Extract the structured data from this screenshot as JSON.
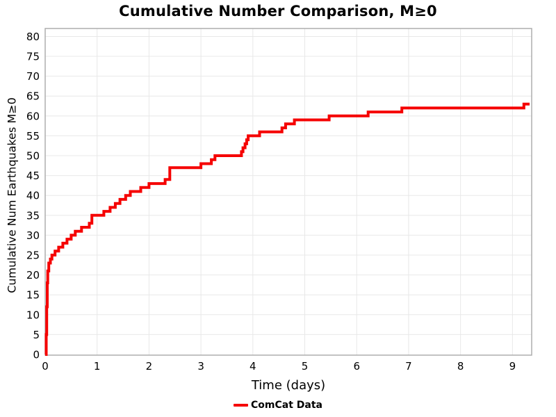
{
  "title": "Cumulative Number Comparison, M≥0",
  "axes": {
    "xlabel": "Time (days)",
    "ylabel": "Cumulative Num Earthquakes M≥0"
  },
  "legend": {
    "position": "bottom-center",
    "items": [
      {
        "label": "ComCat Data",
        "color": "#f50000"
      }
    ]
  },
  "colors": {
    "line": "#f50000",
    "grid": "#e8e8e8",
    "plot_border": "#adadad",
    "background": "#ffffff",
    "text": "#000000"
  },
  "chart_data": {
    "type": "line",
    "step_mode": "post",
    "title": "Cumulative Number Comparison, M≥0",
    "xlabel": "Time (days)",
    "ylabel": "Cumulative Num Earthquakes M≥0",
    "xlim": [
      0,
      9.37
    ],
    "ylim": [
      0,
      82
    ],
    "x_ticks": [
      0,
      1,
      2,
      3,
      4,
      5,
      6,
      7,
      8,
      9
    ],
    "y_ticks": [
      0,
      5,
      10,
      15,
      20,
      25,
      30,
      35,
      40,
      45,
      50,
      55,
      60,
      65,
      70,
      75,
      80
    ],
    "grid": true,
    "legend_position": "bottom",
    "x_end": 9.33,
    "series": [
      {
        "name": "ComCat Data",
        "color": "#f50000",
        "line_width": 4,
        "points": [
          [
            0.0,
            0
          ],
          [
            0.02,
            5
          ],
          [
            0.03,
            12
          ],
          [
            0.04,
            18
          ],
          [
            0.05,
            21
          ],
          [
            0.07,
            23
          ],
          [
            0.1,
            24
          ],
          [
            0.13,
            25
          ],
          [
            0.19,
            26
          ],
          [
            0.26,
            27
          ],
          [
            0.34,
            28
          ],
          [
            0.42,
            29
          ],
          [
            0.5,
            30
          ],
          [
            0.58,
            31
          ],
          [
            0.7,
            32
          ],
          [
            0.85,
            33
          ],
          [
            0.9,
            35
          ],
          [
            1.13,
            36
          ],
          [
            1.25,
            37
          ],
          [
            1.35,
            38
          ],
          [
            1.44,
            39
          ],
          [
            1.55,
            40
          ],
          [
            1.64,
            41
          ],
          [
            1.84,
            42
          ],
          [
            2.0,
            43
          ],
          [
            2.31,
            44
          ],
          [
            2.4,
            47
          ],
          [
            3.0,
            48
          ],
          [
            3.2,
            49
          ],
          [
            3.27,
            50
          ],
          [
            3.78,
            51
          ],
          [
            3.81,
            52
          ],
          [
            3.85,
            53
          ],
          [
            3.88,
            54
          ],
          [
            3.91,
            55
          ],
          [
            4.13,
            56
          ],
          [
            4.56,
            57
          ],
          [
            4.63,
            58
          ],
          [
            4.8,
            59
          ],
          [
            5.47,
            60
          ],
          [
            6.22,
            61
          ],
          [
            6.87,
            62
          ],
          [
            9.22,
            63
          ]
        ]
      }
    ]
  }
}
